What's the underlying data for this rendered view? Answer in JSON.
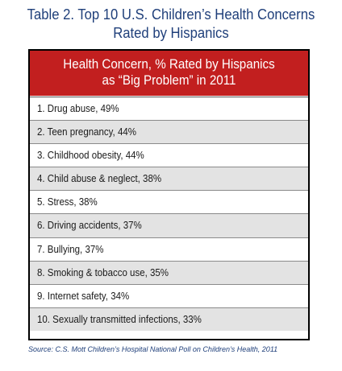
{
  "title": {
    "line1": "Table 2.  Top 10 U.S. Children’s Health Concerns",
    "line2": "Rated by Hispanics"
  },
  "header": {
    "line1": "Health Concern, % Rated by Hispanics",
    "line2": "as “Big Problem” in 2011"
  },
  "rows": [
    "1. Drug abuse, 49%",
    "2. Teen pregnancy, 44%",
    "3. Childhood obesity, 44%",
    "4. Child abuse & neglect, 38%",
    "5. Stress, 38%",
    "6. Driving accidents, 37%",
    "7. Bullying, 37%",
    "8. Smoking & tobacco use, 35%",
    "9. Internet safety, 34%",
    "10. Sexually transmitted infections, 33%"
  ],
  "source": "Source:  C.S. Mott Children’s Hospital National Poll on Children’s Health, 2011",
  "colors": {
    "header_bg": "#c21f1f",
    "title_text": "#1f3f7a",
    "row_alt": "#e3e3e3"
  },
  "chart_data": {
    "type": "table",
    "title": "Table 2.  Top 10 U.S. Children’s Health Concerns Rated by Hispanics",
    "columns": [
      "Health Concern, % Rated by Hispanics as “Big Problem” in 2011"
    ],
    "categories": [
      "Drug abuse",
      "Teen pregnancy",
      "Childhood obesity",
      "Child abuse & neglect",
      "Stress",
      "Driving accidents",
      "Bullying",
      "Smoking & tobacco use",
      "Internet safety",
      "Sexually transmitted infections"
    ],
    "values": [
      49,
      44,
      44,
      38,
      38,
      37,
      37,
      35,
      34,
      33
    ],
    "unit": "%"
  }
}
